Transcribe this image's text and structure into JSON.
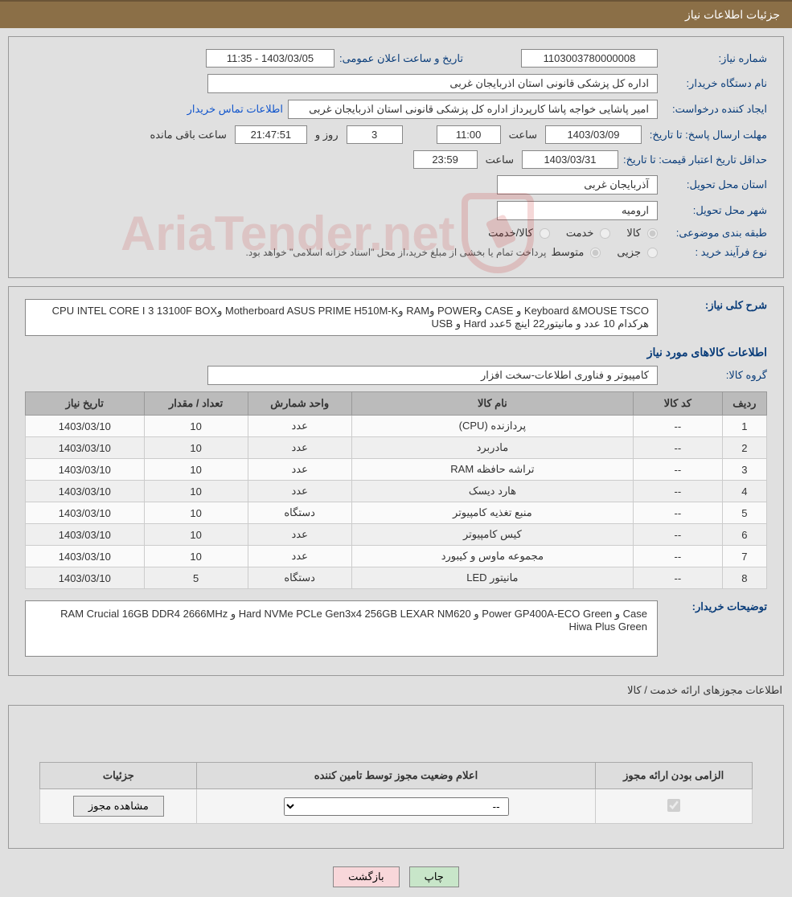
{
  "header": {
    "title": "جزئیات اطلاعات نیاز"
  },
  "info": {
    "need_number_label": "شماره نیاز:",
    "need_number": "1103003780000008",
    "announce_label": "تاریخ و ساعت اعلان عمومی:",
    "announce_value": "1403/03/05 - 11:35",
    "buyer_label": "نام دستگاه خریدار:",
    "buyer_value": "اداره کل پزشکی قانونی استان اذربایجان غربی",
    "requester_label": "ایجاد کننده درخواست:",
    "requester_value": "امیر پاشایی خواجه پاشا کارپرداز اداره کل پزشکی قانونی استان اذربایجان غربی",
    "contact_link": "اطلاعات تماس خریدار",
    "deadline_label": "مهلت ارسال پاسخ: تا تاریخ:",
    "deadline_date": "1403/03/09",
    "time_word": "ساعت",
    "deadline_time": "11:00",
    "days_left": "3",
    "days_word": "روز و",
    "time_left": "21:47:51",
    "remain_word": "ساعت باقی مانده",
    "validity_label": "حداقل تاریخ اعتبار قیمت: تا تاریخ:",
    "validity_date": "1403/03/31",
    "validity_time": "23:59",
    "province_label": "استان محل تحویل:",
    "province_value": "آذربایجان غربی",
    "city_label": "شهر محل تحویل:",
    "city_value": "ارومیه",
    "category_label": "طبقه بندی موضوعی:",
    "cat_opt1": "کالا",
    "cat_opt2": "خدمت",
    "cat_opt3": "کالا/خدمت",
    "process_label": "نوع فرآیند خرید :",
    "proc_opt1": "جزیی",
    "proc_opt2": "متوسط",
    "process_note": "پرداخت تمام یا بخشی از مبلغ خرید،از محل \"اسناد خزانه اسلامی\" خواهد بود."
  },
  "detail": {
    "overview_label": "شرح کلی نیاز:",
    "overview_value": "CPU INTEL CORE I 3 13100F BOXو Motherboard ASUS PRIME H510M-Kو RAMو POWERو CASE و Keyboard &MOUSE TSCO USB و Hard هرکدام 10 عدد و مانیتور22 اینچ 5عدد",
    "goods_title": "اطلاعات کالاهای مورد نیاز",
    "group_label": "گروه کالا:",
    "group_value": "کامپیوتر و فناوری اطلاعات-سخت افزار",
    "table": {
      "headers": [
        "ردیف",
        "کد کالا",
        "نام کالا",
        "واحد شمارش",
        "تعداد / مقدار",
        "تاریخ نیاز"
      ],
      "rows": [
        [
          "1",
          "--",
          "پردازنده (CPU)",
          "عدد",
          "10",
          "1403/03/10"
        ],
        [
          "2",
          "--",
          "مادربرد",
          "عدد",
          "10",
          "1403/03/10"
        ],
        [
          "3",
          "--",
          "تراشه حافظه RAM",
          "عدد",
          "10",
          "1403/03/10"
        ],
        [
          "4",
          "--",
          "هارد دیسک",
          "عدد",
          "10",
          "1403/03/10"
        ],
        [
          "5",
          "--",
          "منبع تغذیه کامپیوتر",
          "دستگاه",
          "10",
          "1403/03/10"
        ],
        [
          "6",
          "--",
          "کیس کامپیوتر",
          "عدد",
          "10",
          "1403/03/10"
        ],
        [
          "7",
          "--",
          "مجموعه ماوس و کیبورد",
          "عدد",
          "10",
          "1403/03/10"
        ],
        [
          "8",
          "--",
          "مانیتور LED",
          "دستگاه",
          "5",
          "1403/03/10"
        ]
      ]
    },
    "buyer_notes_label": "توضیحات خریدار:",
    "buyer_notes_value": "RAM Crucial 16GB DDR4 2666MHz و Hard NVMe PCLe Gen3x4 256GB LEXAR NM620 و Power GP400A-ECO Green و Case Hiwa Plus Green"
  },
  "permits": {
    "title": "اطلاعات مجوزهای ارائه خدمت / کالا",
    "headers": [
      "الزامی بودن ارائه مجوز",
      "اعلام وضعیت مجوز توسط تامین کننده",
      "جزئیات"
    ],
    "select_value": "--",
    "view_btn": "مشاهده مجوز"
  },
  "footer": {
    "print": "چاپ",
    "back": "بازگشت"
  },
  "watermark": {
    "text": "AriaTender.net"
  },
  "colors": {
    "header_bg": "#8b6f47",
    "label_color": "#0a3d7a",
    "page_bg": "#e0e0e0",
    "border": "#888"
  }
}
